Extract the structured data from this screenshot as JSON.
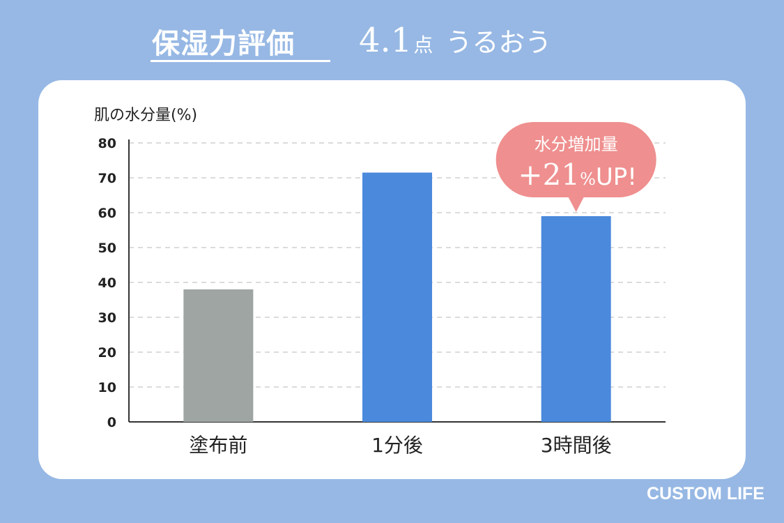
{
  "header": {
    "title": "保湿力評価",
    "score_value": "4.1",
    "score_unit": "点",
    "score_text": "うるおう"
  },
  "chart_data": {
    "type": "bar",
    "ylabel": "肌の水分量(%)",
    "categories": [
      "塗布前",
      "1分後",
      "3時間後"
    ],
    "values": [
      38,
      71.5,
      59
    ],
    "ylim": [
      0,
      80
    ],
    "yticks": [
      0,
      10,
      20,
      30,
      40,
      50,
      60,
      70,
      80
    ],
    "grid": true,
    "bar_colors": [
      "#9ea5a3",
      "#4a89dc",
      "#4a89dc"
    ],
    "annotation": {
      "line1": "水分増加量",
      "line2": "+21",
      "line2_unit": "%",
      "line2_suffix": "UP!",
      "color": "#ef8f8f",
      "target_category": "3時間後"
    }
  },
  "brand": {
    "text": "CUSTOM LIFE"
  },
  "colors": {
    "background": "#97b8e4",
    "card": "#ffffff",
    "axis": "#333333"
  }
}
